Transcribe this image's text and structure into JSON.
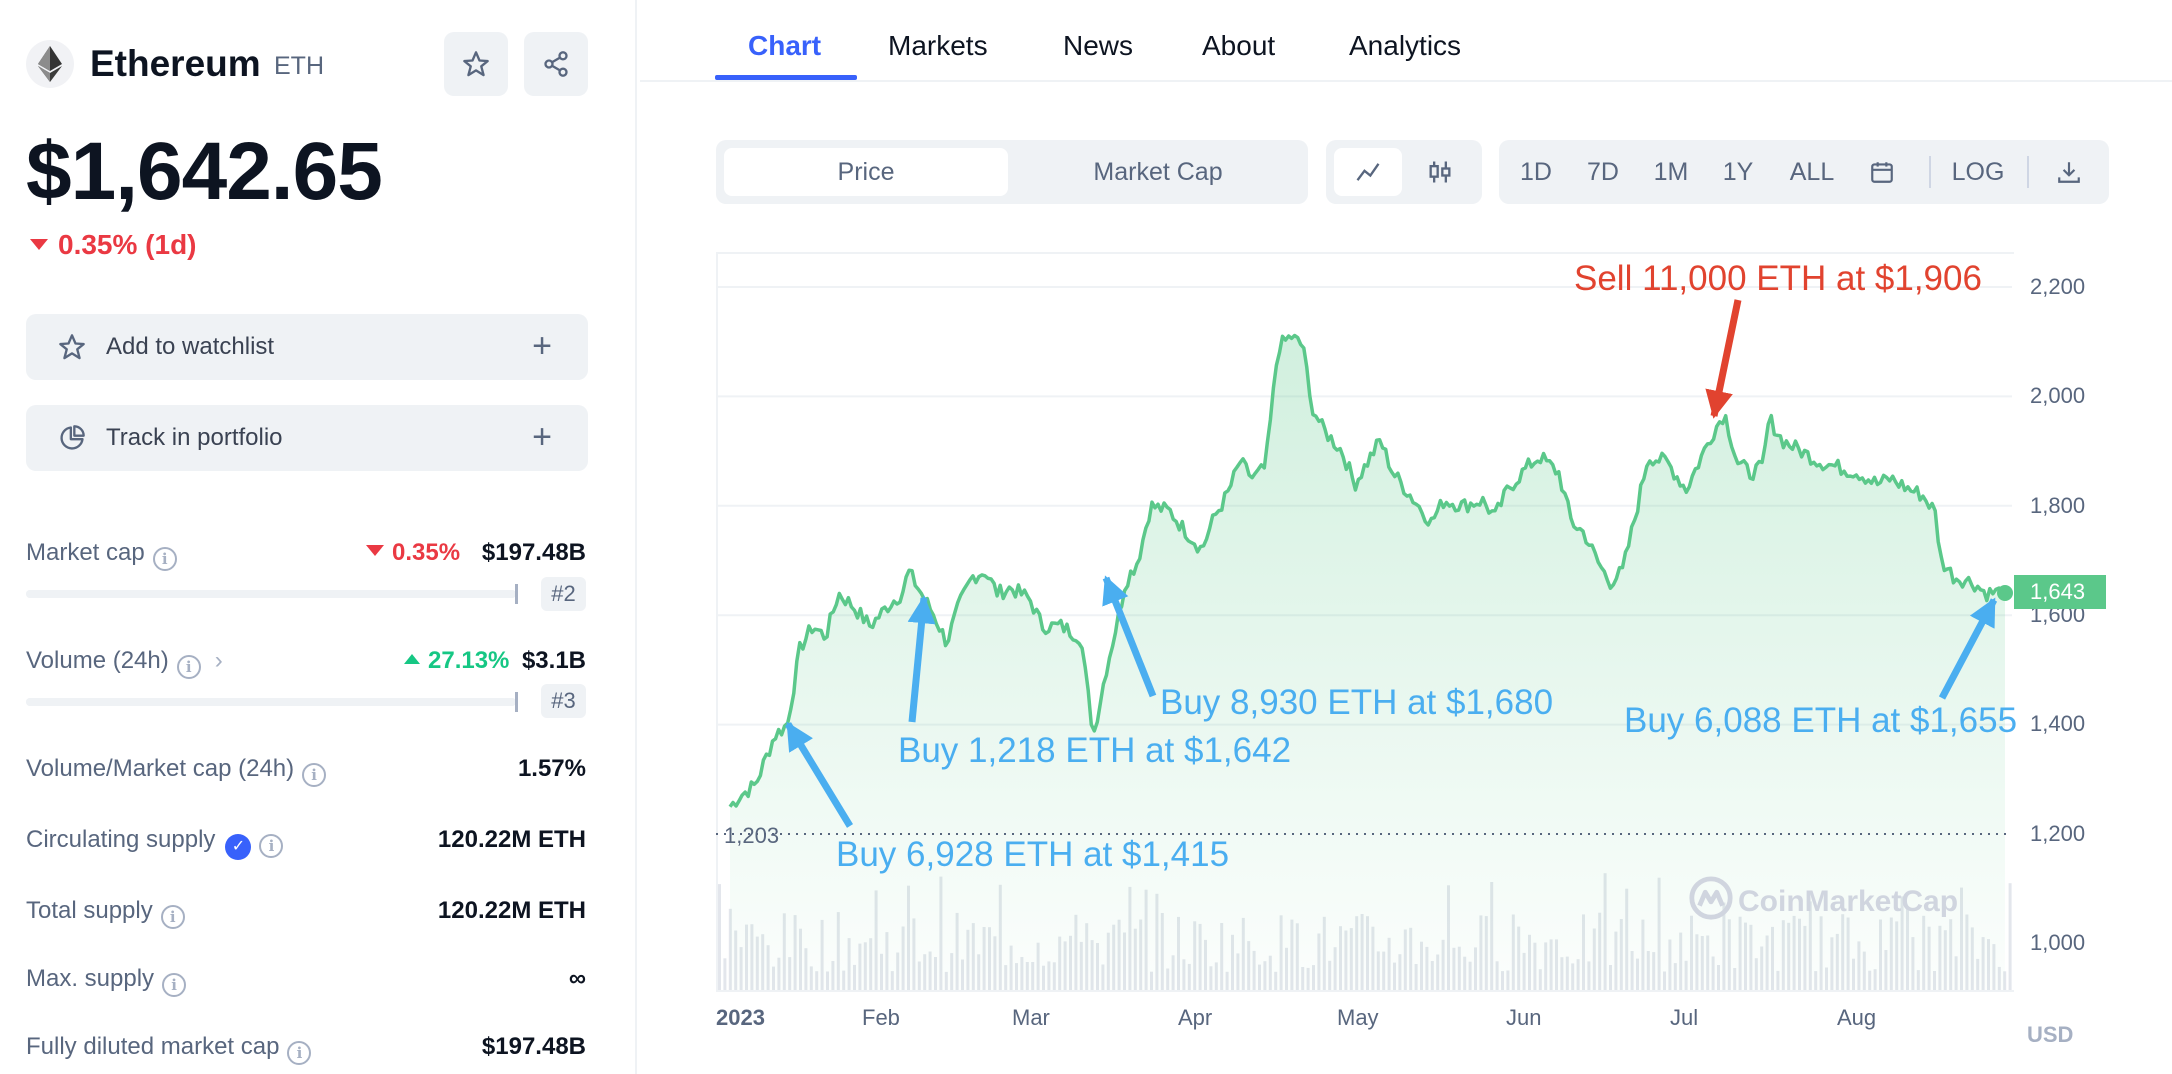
{
  "coin": {
    "name": "Ethereum",
    "symbol": "ETH",
    "price": "$1,642.65",
    "change_1d": "0.35% (1d)"
  },
  "actions": {
    "watchlist": "Add to watchlist",
    "portfolio": "Track in portfolio",
    "plus": "+"
  },
  "stats": {
    "market_cap": {
      "label": "Market cap",
      "change": "0.35%",
      "value": "$197.48B",
      "rank": "#2",
      "bar_fill_pct": 100
    },
    "volume": {
      "label": "Volume (24h)",
      "change": "27.13%",
      "value": "$3.1B",
      "rank": "#3",
      "bar_fill_pct": 100
    },
    "vol_mcap": {
      "label": "Volume/Market cap (24h)",
      "value": "1.57%"
    },
    "circulating": {
      "label": "Circulating supply",
      "value": "120.22M ETH"
    },
    "total": {
      "label": "Total supply",
      "value": "120.22M ETH"
    },
    "max": {
      "label": "Max. supply",
      "value": "∞"
    },
    "fdmc": {
      "label": "Fully diluted market cap",
      "value": "$197.48B"
    }
  },
  "tabs": [
    "Chart",
    "Markets",
    "News",
    "About",
    "Analytics"
  ],
  "toolbar": {
    "price": "Price",
    "market_cap": "Market Cap",
    "ranges": [
      "1D",
      "7D",
      "1M",
      "1Y",
      "ALL"
    ],
    "log": "LOG"
  },
  "chart": {
    "y_ticks": [
      "2,200",
      "2,000",
      "1,800",
      "1,600",
      "1,400",
      "1,200",
      "1,000"
    ],
    "x_ticks": [
      "2023",
      "Feb",
      "Mar",
      "Apr",
      "May",
      "Jun",
      "Jul",
      "Aug"
    ],
    "min_label": "1,203",
    "current_label": "1,643",
    "currency": "USD",
    "watermark": "CoinMarketCap",
    "colors": {
      "line": "#5bc88a",
      "buy": "#4aaef0",
      "sell": "#e1432f"
    },
    "annotations": [
      {
        "text": "Buy 6,928 ETH at $1,415",
        "type": "buy"
      },
      {
        "text": "Buy 1,218 ETH at $1,642",
        "type": "buy"
      },
      {
        "text": "Buy 8,930 ETH at $1,680",
        "type": "buy"
      },
      {
        "text": "Sell 11,000 ETH at $1,906",
        "type": "sell"
      },
      {
        "text": "Buy 6,088 ETH at $1,655",
        "type": "buy"
      }
    ]
  }
}
